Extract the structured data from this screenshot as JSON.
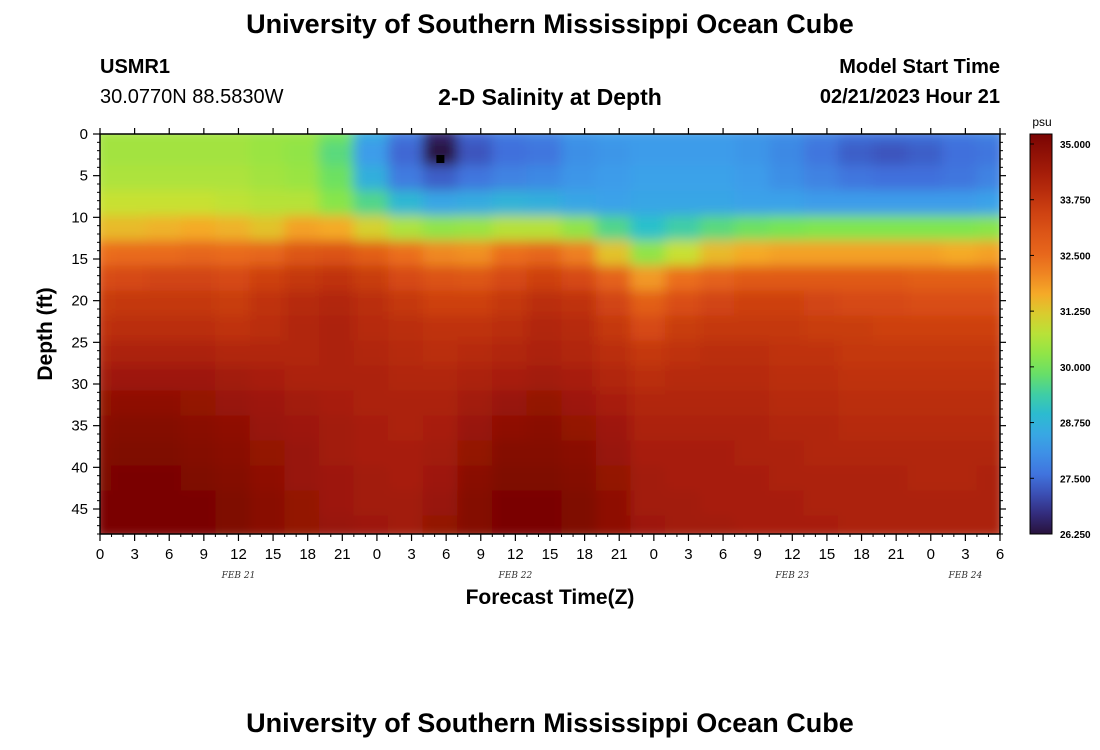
{
  "header": {
    "title": "University of Southern Mississippi Ocean Cube",
    "station": "USMR1",
    "coords": "30.0770N  88.5830W",
    "subtitle": "2-D Salinity at Depth",
    "model_start_label": "Model Start Time",
    "model_start_time": "02/21/2023 Hour 21"
  },
  "footer": {
    "title": "University of Southern Mississippi Ocean Cube"
  },
  "chart_data": {
    "type": "heatmap",
    "title": "2-D Salinity at Depth",
    "xlabel": "Forecast Time(Z)",
    "ylabel": "Depth (ft)",
    "x_ticks": [
      "0",
      "3",
      "6",
      "9",
      "12",
      "15",
      "18",
      "21",
      "0",
      "3",
      "6",
      "9",
      "12",
      "15",
      "18",
      "21",
      "0",
      "3",
      "6",
      "9",
      "12",
      "15",
      "18",
      "21",
      "0",
      "3",
      "6"
    ],
    "x_range_hours": [
      0,
      78
    ],
    "date_labels": [
      {
        "label": "FEB 21",
        "hour": 12
      },
      {
        "label": "FEB 22",
        "hour": 36
      },
      {
        "label": "FEB 23",
        "hour": 60
      },
      {
        "label": "FEB 24",
        "hour": 75
      }
    ],
    "y_ticks": [
      0,
      5,
      10,
      15,
      20,
      25,
      30,
      35,
      40,
      45
    ],
    "ylim": [
      0,
      48
    ],
    "colorbar": {
      "unit": "psu",
      "min": 26.25,
      "max": 35.0,
      "labels": [
        "35.000",
        "33.750",
        "32.500",
        "31.250",
        "30.000",
        "28.750",
        "27.500",
        "26.250"
      ]
    },
    "marker": {
      "hour": 29.5,
      "depth_ft": 3
    },
    "grid": {
      "hours": [
        0,
        3,
        6,
        9,
        12,
        15,
        18,
        21,
        24,
        27,
        30,
        33,
        36,
        39,
        42,
        45,
        48,
        51,
        54,
        57,
        60,
        63,
        66,
        69,
        72,
        75,
        78
      ],
      "depths_ft": [
        0,
        3,
        6,
        9,
        12,
        15,
        18,
        21,
        24,
        27,
        30,
        33,
        36,
        39,
        42,
        45,
        48
      ],
      "salinity_psu": [
        [
          30.4,
          30.4,
          30.4,
          30.4,
          30.4,
          30.3,
          30.3,
          29.9,
          28.5,
          27.7,
          26.6,
          27.4,
          27.7,
          27.8,
          28.1,
          28.2,
          28.2,
          28.2,
          28.2,
          28.1,
          28.0,
          27.8,
          27.6,
          27.6,
          27.6,
          27.7,
          27.8
        ],
        [
          30.4,
          30.4,
          30.4,
          30.4,
          30.4,
          30.3,
          30.2,
          29.6,
          28.2,
          27.4,
          26.3,
          27.2,
          27.5,
          27.6,
          28.0,
          28.1,
          28.2,
          28.2,
          28.2,
          28.1,
          27.9,
          27.6,
          27.3,
          27.2,
          27.3,
          27.5,
          27.6
        ],
        [
          30.5,
          30.5,
          30.5,
          30.5,
          30.5,
          30.4,
          30.3,
          29.8,
          28.6,
          27.7,
          27.3,
          27.6,
          27.8,
          27.9,
          28.1,
          28.2,
          28.3,
          28.3,
          28.3,
          28.2,
          28.0,
          27.8,
          27.6,
          27.5,
          27.5,
          27.6,
          27.8
        ],
        [
          30.8,
          30.8,
          30.8,
          30.8,
          30.7,
          30.6,
          30.6,
          30.1,
          29.5,
          28.8,
          28.4,
          28.5,
          28.7,
          28.6,
          28.4,
          28.3,
          28.4,
          28.4,
          28.4,
          28.3,
          28.3,
          28.2,
          28.2,
          28.2,
          28.2,
          28.2,
          28.3
        ],
        [
          31.3,
          31.3,
          31.4,
          31.5,
          31.4,
          31.2,
          31.6,
          31.5,
          31.0,
          30.5,
          30.2,
          30.3,
          30.6,
          30.6,
          30.2,
          29.5,
          29.0,
          29.3,
          29.6,
          29.8,
          29.9,
          30.0,
          30.0,
          30.0,
          30.0,
          30.0,
          30.1
        ],
        [
          32.2,
          32.3,
          32.3,
          32.4,
          32.3,
          32.4,
          32.8,
          32.9,
          32.6,
          32.2,
          31.9,
          31.8,
          32.2,
          32.4,
          32.0,
          31.2,
          30.2,
          30.8,
          31.3,
          31.5,
          31.6,
          31.6,
          31.6,
          31.6,
          31.6,
          31.5,
          31.6
        ],
        [
          33.0,
          33.1,
          33.2,
          33.2,
          33.1,
          33.3,
          33.5,
          33.6,
          33.4,
          33.1,
          32.9,
          32.8,
          33.1,
          33.3,
          33.1,
          32.5,
          31.7,
          32.2,
          32.5,
          32.7,
          32.7,
          32.7,
          32.7,
          32.7,
          32.6,
          32.6,
          32.6
        ],
        [
          33.4,
          33.5,
          33.5,
          33.5,
          33.4,
          33.6,
          33.8,
          33.9,
          33.7,
          33.5,
          33.3,
          33.3,
          33.5,
          33.7,
          33.6,
          33.2,
          32.6,
          33.0,
          33.2,
          33.3,
          33.3,
          33.2,
          33.1,
          33.1,
          33.0,
          33.0,
          33.0
        ],
        [
          33.6,
          33.7,
          33.7,
          33.7,
          33.6,
          33.7,
          33.9,
          34.0,
          33.8,
          33.7,
          33.6,
          33.6,
          33.7,
          33.9,
          33.8,
          33.5,
          33.1,
          33.4,
          33.5,
          33.5,
          33.5,
          33.4,
          33.4,
          33.3,
          33.3,
          33.3,
          33.3
        ],
        [
          33.9,
          34.0,
          34.0,
          34.0,
          33.9,
          33.9,
          33.9,
          34.0,
          33.9,
          33.8,
          33.7,
          33.8,
          33.9,
          34.0,
          33.9,
          33.7,
          33.5,
          33.6,
          33.7,
          33.7,
          33.6,
          33.6,
          33.5,
          33.5,
          33.5,
          33.5,
          33.5
        ],
        [
          34.2,
          34.3,
          34.3,
          34.3,
          34.2,
          34.1,
          34.0,
          34.0,
          34.0,
          33.9,
          33.9,
          34.0,
          34.1,
          34.2,
          34.1,
          33.9,
          33.7,
          33.8,
          33.8,
          33.8,
          33.7,
          33.7,
          33.6,
          33.6,
          33.6,
          33.6,
          33.6
        ],
        [
          34.5,
          34.6,
          34.6,
          34.5,
          34.4,
          34.3,
          34.2,
          34.1,
          34.0,
          34.0,
          34.0,
          34.2,
          34.4,
          34.5,
          34.3,
          34.1,
          33.9,
          33.9,
          33.9,
          33.9,
          33.8,
          33.8,
          33.7,
          33.7,
          33.7,
          33.7,
          33.7
        ],
        [
          34.7,
          34.8,
          34.8,
          34.7,
          34.6,
          34.4,
          34.3,
          34.2,
          34.1,
          34.0,
          34.1,
          34.4,
          34.6,
          34.7,
          34.5,
          34.3,
          34.0,
          34.0,
          34.0,
          34.0,
          33.9,
          33.9,
          33.8,
          33.8,
          33.8,
          33.8,
          33.8
        ],
        [
          34.8,
          34.9,
          34.9,
          34.8,
          34.7,
          34.5,
          34.4,
          34.2,
          34.1,
          34.1,
          34.2,
          34.5,
          34.8,
          34.8,
          34.7,
          34.4,
          34.1,
          34.1,
          34.1,
          34.0,
          34.0,
          33.9,
          33.9,
          33.9,
          33.9,
          33.9,
          33.9
        ],
        [
          34.9,
          35.0,
          35.0,
          34.9,
          34.8,
          34.6,
          34.4,
          34.3,
          34.2,
          34.1,
          34.3,
          34.7,
          34.9,
          34.9,
          34.8,
          34.5,
          34.2,
          34.1,
          34.1,
          34.1,
          34.0,
          34.0,
          34.0,
          34.0,
          33.9,
          33.9,
          34.0
        ],
        [
          35.0,
          35.0,
          35.0,
          35.0,
          34.9,
          34.7,
          34.5,
          34.3,
          34.2,
          34.2,
          34.4,
          34.8,
          35.0,
          35.0,
          34.9,
          34.6,
          34.2,
          34.2,
          34.1,
          34.1,
          34.1,
          34.0,
          34.0,
          34.0,
          34.0,
          34.0,
          34.0
        ],
        [
          35.0,
          35.0,
          35.0,
          35.0,
          34.9,
          34.7,
          34.5,
          34.4,
          34.3,
          34.2,
          34.5,
          34.8,
          35.0,
          35.0,
          34.9,
          34.6,
          34.3,
          34.2,
          34.2,
          34.1,
          34.1,
          34.1,
          34.0,
          34.0,
          34.0,
          34.0,
          34.0
        ]
      ]
    }
  }
}
